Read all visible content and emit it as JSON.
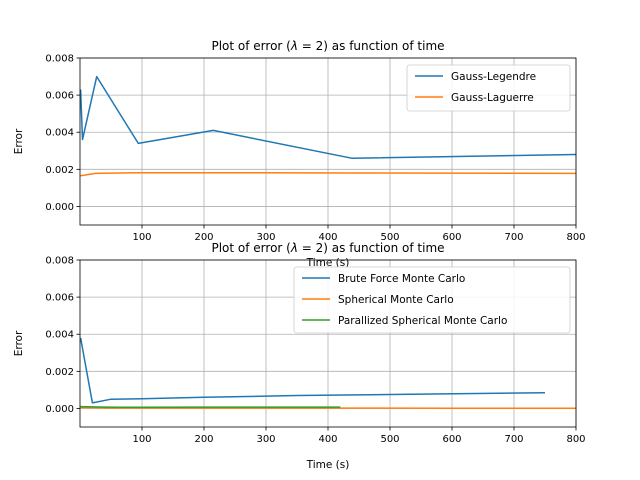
{
  "chart_data": [
    {
      "type": "line",
      "title_prefix": "Plot of error (",
      "title_lambda": "λ",
      "title_eq": " = 2)",
      "title_suffix": " as function of time",
      "xlabel": "Time (s)",
      "ylabel": "Error",
      "xlim": [
        0,
        800
      ],
      "ylim": [
        -0.001,
        0.008
      ],
      "xticks": [
        100,
        200,
        300,
        400,
        500,
        600,
        700,
        800
      ],
      "yticks": [
        0.0,
        0.002,
        0.004,
        0.006,
        0.008
      ],
      "ytick_labels": [
        "0.000",
        "0.002",
        "0.004",
        "0.006",
        "0.008"
      ],
      "grid": true,
      "legend_position": "upper right",
      "series": [
        {
          "name": "Gauss-Legendre",
          "color": "#1f77b4",
          "x": [
            1,
            4,
            27,
            94,
            215,
            438,
            800
          ],
          "y": [
            0.0063,
            0.0036,
            0.007,
            0.0034,
            0.0041,
            0.0026,
            0.0028
          ]
        },
        {
          "name": "Gauss-Laguerre",
          "color": "#ff7f0e",
          "x": [
            1,
            25,
            100,
            216,
            440,
            800
          ],
          "y": [
            0.00165,
            0.00178,
            0.00182,
            0.00182,
            0.0018,
            0.00178
          ]
        }
      ]
    },
    {
      "type": "line",
      "title_prefix": "Plot of error (",
      "title_lambda": "λ",
      "title_eq": " = 2)",
      "title_suffix": " as function of time",
      "xlabel": "Time (s)",
      "ylabel": "Error",
      "xlim": [
        0,
        800
      ],
      "ylim": [
        -0.001,
        0.008
      ],
      "xticks": [
        100,
        200,
        300,
        400,
        500,
        600,
        700,
        800
      ],
      "yticks": [
        0.0,
        0.002,
        0.004,
        0.006,
        0.008
      ],
      "ytick_labels": [
        "0.000",
        "0.002",
        "0.004",
        "0.006",
        "0.008"
      ],
      "grid": true,
      "legend_position": "upper right",
      "series": [
        {
          "name": "Brute Force Monte Carlo",
          "color": "#1f77b4",
          "x": [
            1,
            20,
            50,
            100,
            200,
            350,
            500,
            750
          ],
          "y": [
            0.0038,
            0.0003,
            0.0005,
            0.00052,
            0.0006,
            0.0007,
            0.00075,
            0.00085
          ]
        },
        {
          "name": "Spherical Monte Carlo",
          "color": "#ff7f0e",
          "x": [
            1,
            50,
            100,
            200,
            400,
            600,
            800
          ],
          "y": [
            5e-05,
            2e-05,
            2e-05,
            2e-05,
            2e-05,
            1e-05,
            1e-05
          ]
        },
        {
          "name": "Parallized Spherical Monte Carlo",
          "color": "#2ca02c",
          "x": [
            1,
            30,
            60,
            100,
            200,
            300,
            420
          ],
          "y": [
            0.0001,
            8e-05,
            6e-05,
            6e-05,
            7e-05,
            7e-05,
            7e-05
          ]
        }
      ]
    }
  ]
}
